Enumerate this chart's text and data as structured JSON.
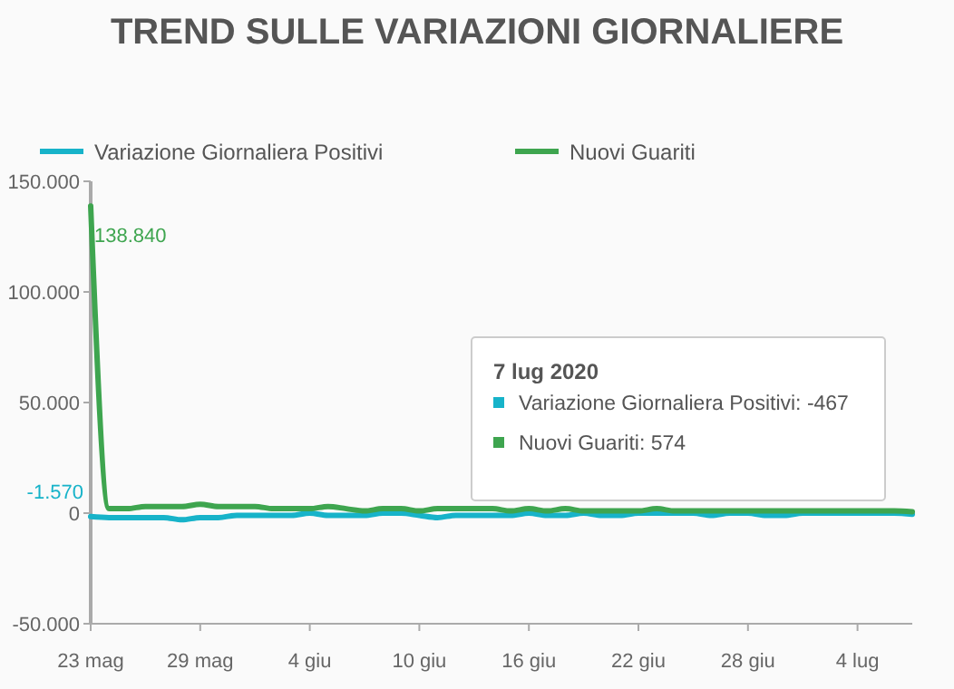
{
  "chart_data": {
    "type": "line",
    "title": "TREND SULLE VARIAZIONI GIORNALIERE",
    "x": [
      "2020-05-23",
      "2020-05-24",
      "2020-05-25",
      "2020-05-26",
      "2020-05-27",
      "2020-05-28",
      "2020-05-29",
      "2020-05-30",
      "2020-05-31",
      "2020-06-01",
      "2020-06-02",
      "2020-06-03",
      "2020-06-04",
      "2020-06-05",
      "2020-06-06",
      "2020-06-07",
      "2020-06-08",
      "2020-06-09",
      "2020-06-10",
      "2020-06-11",
      "2020-06-12",
      "2020-06-13",
      "2020-06-14",
      "2020-06-15",
      "2020-06-16",
      "2020-06-17",
      "2020-06-18",
      "2020-06-19",
      "2020-06-20",
      "2020-06-21",
      "2020-06-22",
      "2020-06-23",
      "2020-06-24",
      "2020-06-25",
      "2020-06-26",
      "2020-06-27",
      "2020-06-28",
      "2020-06-29",
      "2020-06-30",
      "2020-07-01",
      "2020-07-02",
      "2020-07-03",
      "2020-07-04",
      "2020-07-05",
      "2020-07-06",
      "2020-07-07"
    ],
    "series": [
      {
        "name": "Variazione Giornaliera Positivi",
        "color": "#17b3c9",
        "values": [
          -1570,
          -2000,
          -2000,
          -2000,
          -2000,
          -3000,
          -2000,
          -2000,
          -1000,
          -1000,
          -1000,
          -1000,
          0,
          -1000,
          -1000,
          -1000,
          0,
          0,
          -1000,
          -2000,
          -1000,
          -1000,
          -1000,
          -1000,
          0,
          -1000,
          -1000,
          0,
          -1000,
          -1000,
          0,
          0,
          0,
          0,
          -1000,
          0,
          0,
          -1000,
          -1000,
          0,
          0,
          0,
          0,
          0,
          0,
          -467
        ],
        "value_labels": [
          "-1.570",
          null,
          null,
          null,
          null,
          null,
          null,
          null,
          null,
          null,
          null,
          null,
          null,
          null,
          null,
          null,
          null,
          null,
          null,
          null,
          null,
          null,
          null,
          null,
          null,
          null,
          null,
          null,
          null,
          null,
          null,
          null,
          null,
          null,
          null,
          null,
          null,
          null,
          null,
          null,
          null,
          null,
          null,
          null,
          null,
          null
        ]
      },
      {
        "name": "Nuovi Guariti",
        "color": "#3ea54f",
        "values": [
          138840,
          2000,
          2000,
          3000,
          3000,
          3000,
          4000,
          3000,
          3000,
          3000,
          2000,
          2000,
          2000,
          3000,
          2000,
          1000,
          2000,
          2000,
          1000,
          2000,
          2000,
          2000,
          2000,
          1000,
          2000,
          1000,
          2000,
          1000,
          1000,
          1000,
          1000,
          2000,
          1000,
          1000,
          1000,
          1000,
          1000,
          1000,
          1000,
          1000,
          1000,
          1000,
          1000,
          1000,
          1000,
          574
        ],
        "value_labels": [
          "138.840",
          null,
          null,
          null,
          null,
          null,
          null,
          null,
          null,
          null,
          null,
          null,
          null,
          null,
          null,
          null,
          null,
          null,
          null,
          null,
          null,
          null,
          null,
          null,
          null,
          null,
          null,
          null,
          null,
          null,
          null,
          null,
          null,
          null,
          null,
          null,
          null,
          null,
          null,
          null,
          null,
          null,
          null,
          null,
          null,
          null
        ]
      }
    ],
    "xlim": [
      "2020-05-23",
      "2020-07-07"
    ],
    "xticks": [
      {
        "value": "2020-05-23",
        "label": "23 mag"
      },
      {
        "value": "2020-05-29",
        "label": "29 mag"
      },
      {
        "value": "2020-06-04",
        "label": "4 giu"
      },
      {
        "value": "2020-06-10",
        "label": "10 giu"
      },
      {
        "value": "2020-06-16",
        "label": "16 giu"
      },
      {
        "value": "2020-06-22",
        "label": "22 giu"
      },
      {
        "value": "2020-06-28",
        "label": "28 giu"
      },
      {
        "value": "2020-07-04",
        "label": "4 lug"
      }
    ],
    "ylim": [
      -50000,
      150000
    ],
    "yticks": [
      {
        "value": -50000,
        "label": "-50.000"
      },
      0,
      {
        "value": 50000,
        "label": "50.000"
      },
      {
        "value": 100000,
        "label": "100.000"
      },
      {
        "value": 150000,
        "label": "150.000"
      }
    ],
    "legend": "top left",
    "grid": false,
    "line_style": "solid",
    "annotations": [
      "7 lug 2020",
      "Variazione Giornaliera Positivi: -467",
      "Nuovi Guariti: 574"
    ]
  }
}
